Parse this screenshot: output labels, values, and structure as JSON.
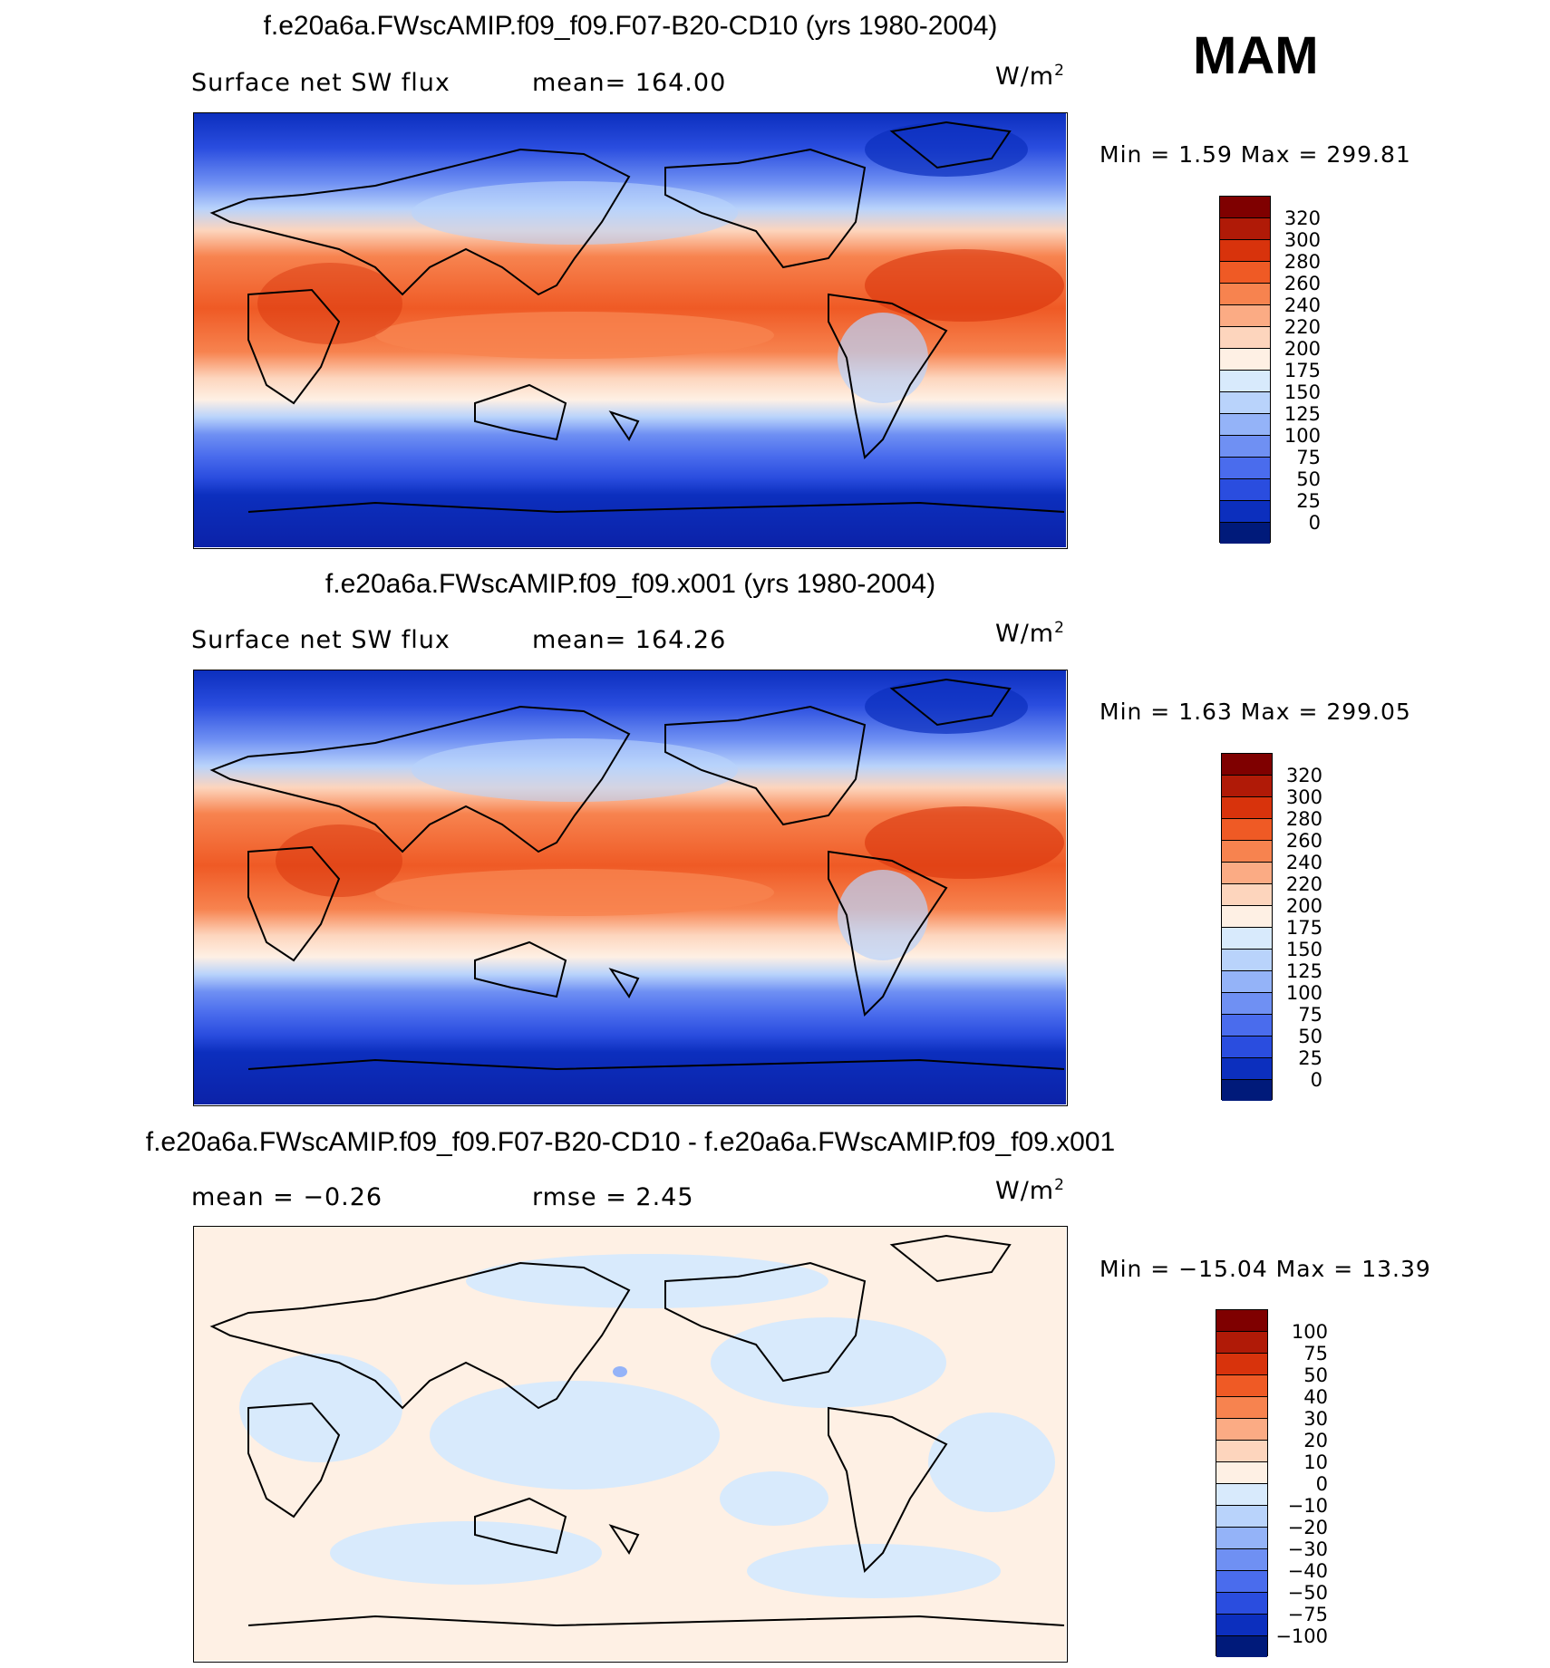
{
  "season": "MAM",
  "units_base": "W/m",
  "units_exp": "2",
  "panels": [
    {
      "title": "f.e20a6a.FWscAMIP.f09_f09.F07-B20-CD10 (yrs 1980-2004)",
      "left_label": "Surface net SW flux",
      "center_label": "mean=  164.00",
      "stats": "Min =    1.59  Max  =  299.81",
      "levels": [
        "320",
        "300",
        "280",
        "260",
        "240",
        "220",
        "200",
        "175",
        "150",
        "125",
        "100",
        "75",
        "50",
        "25",
        "0"
      ]
    },
    {
      "title": "f.e20a6a.FWscAMIP.f09_f09.x001 (yrs 1980-2004)",
      "left_label": "Surface net SW flux",
      "center_label": "mean=  164.26",
      "stats": "Min =    1.63  Max  =  299.05",
      "levels": [
        "320",
        "300",
        "280",
        "260",
        "240",
        "220",
        "200",
        "175",
        "150",
        "125",
        "100",
        "75",
        "50",
        "25",
        "0"
      ]
    },
    {
      "title": "f.e20a6a.FWscAMIP.f09_f09.F07-B20-CD10 - f.e20a6a.FWscAMIP.f09_f09.x001",
      "left_label": "mean  =   −0.26",
      "center_label": "rmse  =    2.45",
      "stats": "Min  =  −15.04  Max  =    13.39",
      "levels": [
        "100",
        "75",
        "50",
        "40",
        "30",
        "20",
        "10",
        "0",
        "−10",
        "−20",
        "−30",
        "−40",
        "−50",
        "−75",
        "−100"
      ]
    }
  ],
  "colors": {
    "abs_scale": [
      "#7f0000",
      "#b01a07",
      "#d8330c",
      "#ef5a25",
      "#f7834f",
      "#fbab84",
      "#fdd5bd",
      "#fef0e4",
      "#d8eafc",
      "#b9d3fb",
      "#94b3f8",
      "#6f90f3",
      "#4a6ced",
      "#2a4ddf",
      "#0c2fbe",
      "#001a7a"
    ],
    "diff_scale": [
      "#7f0000",
      "#b01a07",
      "#d8330c",
      "#ef5a25",
      "#f7834f",
      "#fbab84",
      "#fdd5bd",
      "#fef0e4",
      "#d8eafc",
      "#b9d3fb",
      "#94b3f8",
      "#6f90f3",
      "#4a6ced",
      "#2a4ddf",
      "#0c2fbe",
      "#001a7a"
    ]
  }
}
